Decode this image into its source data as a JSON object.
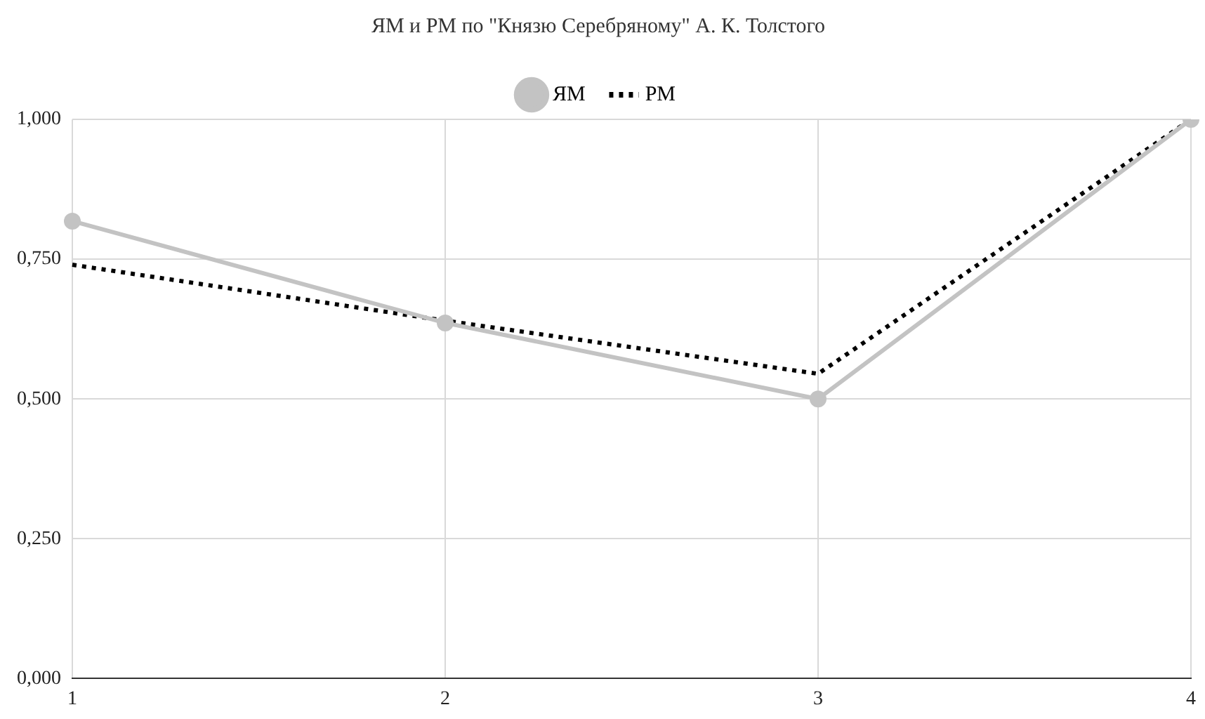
{
  "chart_data": {
    "type": "line",
    "title": "ЯМ и РМ по \"Князю Серебряному\" А. К. Толстого",
    "categories": [
      "1",
      "2",
      "3",
      "4"
    ],
    "series": [
      {
        "name": "ЯМ",
        "color": "#c3c3c3",
        "values": [
          0.818,
          0.636,
          0.5,
          1.0
        ],
        "marker": "circle",
        "line_style": "solid"
      },
      {
        "name": "РМ",
        "color": "#000000",
        "values": [
          0.74,
          0.64,
          0.545,
          1.0
        ],
        "marker": "none",
        "line_style": "dotted"
      }
    ],
    "ylim": [
      0,
      1
    ],
    "yticks": [
      {
        "value": 0,
        "label": "0,000"
      },
      {
        "value": 0.25,
        "label": "0,250"
      },
      {
        "value": 0.5,
        "label": "0,500"
      },
      {
        "value": 0.75,
        "label": "0,750"
      },
      {
        "value": 1,
        "label": "1,000"
      }
    ],
    "grid": true,
    "legend": "top"
  }
}
